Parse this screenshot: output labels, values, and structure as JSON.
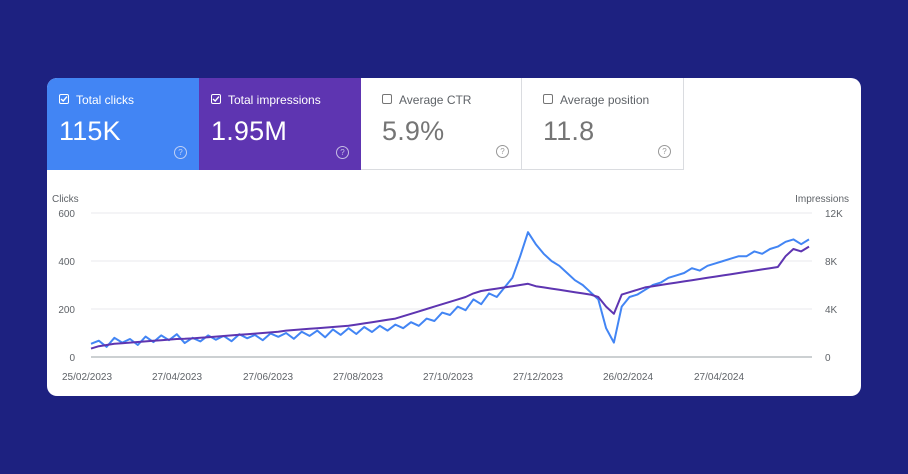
{
  "metrics": [
    {
      "label": "Total clicks",
      "value": "115K",
      "checked": true,
      "color": "#4285f4"
    },
    {
      "label": "Total impressions",
      "value": "1.95M",
      "checked": true,
      "color": "#5e35b1"
    },
    {
      "label": "Average CTR",
      "value": "5.9%",
      "checked": false
    },
    {
      "label": "Average position",
      "value": "11.8",
      "checked": false
    }
  ],
  "help_glyph": "?",
  "chart_data": {
    "type": "line",
    "left_axis_label": "Clicks",
    "right_axis_label": "Impressions",
    "left_ticks": [
      "0",
      "200",
      "400",
      "600"
    ],
    "right_ticks": [
      "0",
      "4K",
      "8K",
      "12K"
    ],
    "left_ylim": [
      0,
      600
    ],
    "right_ylim": [
      0,
      12000
    ],
    "x_ticks": [
      "25/02/2023",
      "27/04/2023",
      "27/06/2023",
      "27/08/2023",
      "27/10/2023",
      "27/12/2023",
      "26/02/2024",
      "27/04/2024"
    ],
    "series": [
      {
        "name": "Total clicks",
        "axis": "left",
        "color": "#4285f4",
        "values": [
          55,
          68,
          42,
          80,
          60,
          75,
          50,
          85,
          62,
          90,
          70,
          95,
          58,
          80,
          65,
          90,
          72,
          88,
          66,
          95,
          78,
          92,
          70,
          98,
          84,
          100,
          76,
          105,
          88,
          110,
          82,
          115,
          92,
          120,
          96,
          125,
          104,
          130,
          110,
          135,
          120,
          145,
          130,
          160,
          150,
          185,
          175,
          210,
          195,
          240,
          220,
          265,
          250,
          290,
          330,
          420,
          520,
          470,
          430,
          400,
          380,
          350,
          320,
          300,
          270,
          240,
          120,
          60,
          210,
          250,
          260,
          280,
          300,
          310,
          330,
          340,
          350,
          370,
          360,
          380,
          390,
          400,
          410,
          420,
          420,
          440,
          430,
          450,
          460,
          480,
          490,
          470,
          490
        ]
      },
      {
        "name": "Total impressions",
        "axis": "right",
        "color": "#5e35b1",
        "values": [
          700,
          900,
          1000,
          1100,
          1150,
          1200,
          1250,
          1300,
          1350,
          1400,
          1450,
          1500,
          1520,
          1550,
          1600,
          1650,
          1700,
          1750,
          1800,
          1850,
          1900,
          1950,
          2000,
          2050,
          2100,
          2200,
          2250,
          2300,
          2350,
          2400,
          2450,
          2500,
          2550,
          2600,
          2700,
          2800,
          2900,
          3000,
          3100,
          3200,
          3400,
          3600,
          3800,
          4000,
          4200,
          4400,
          4600,
          4800,
          5000,
          5300,
          5500,
          5600,
          5700,
          5800,
          5900,
          6000,
          6100,
          5900,
          5800,
          5700,
          5600,
          5500,
          5400,
          5300,
          5200,
          5000,
          4200,
          3600,
          5200,
          5400,
          5600,
          5800,
          5900,
          6000,
          6100,
          6200,
          6300,
          6400,
          6500,
          6600,
          6700,
          6800,
          6900,
          7000,
          7100,
          7200,
          7300,
          7400,
          7500,
          8400,
          9000,
          8800,
          9200
        ]
      }
    ]
  }
}
